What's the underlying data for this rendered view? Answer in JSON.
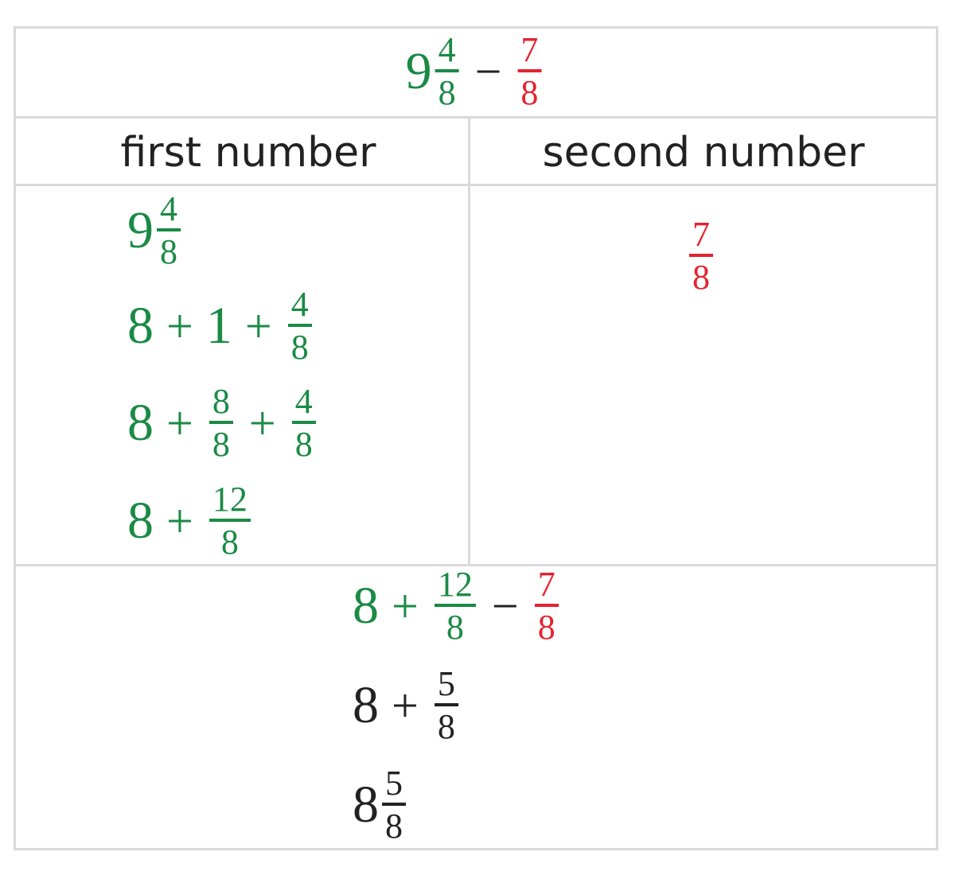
{
  "colors": {
    "green": "#1a8a45",
    "red": "#e52330",
    "black": "#222222",
    "border": "#d9d9d9"
  },
  "headers": {
    "first": "first number",
    "second": "second number"
  },
  "problem": [
    {
      "t": "num",
      "v": "9",
      "c": "green"
    },
    {
      "t": "frac",
      "n": "4",
      "d": "8",
      "c": "green"
    },
    {
      "t": "op",
      "v": "−",
      "c": "black"
    },
    {
      "t": "frac",
      "n": "7",
      "d": "8",
      "c": "red"
    }
  ],
  "first_steps": [
    [
      {
        "t": "num",
        "v": "9",
        "c": "green"
      },
      {
        "t": "frac",
        "n": "4",
        "d": "8",
        "c": "green"
      }
    ],
    [
      {
        "t": "num",
        "v": "8",
        "c": "green"
      },
      {
        "t": "op",
        "v": "+",
        "c": "green"
      },
      {
        "t": "num",
        "v": "1",
        "c": "green"
      },
      {
        "t": "op",
        "v": "+",
        "c": "green"
      },
      {
        "t": "frac",
        "n": "4",
        "d": "8",
        "c": "green"
      }
    ],
    [
      {
        "t": "num",
        "v": "8",
        "c": "green"
      },
      {
        "t": "op",
        "v": "+",
        "c": "green"
      },
      {
        "t": "frac",
        "n": "8",
        "d": "8",
        "c": "green"
      },
      {
        "t": "op",
        "v": "+",
        "c": "green"
      },
      {
        "t": "frac",
        "n": "4",
        "d": "8",
        "c": "green"
      }
    ],
    [
      {
        "t": "num",
        "v": "8",
        "c": "green"
      },
      {
        "t": "op",
        "v": "+",
        "c": "green"
      },
      {
        "t": "frac",
        "n": "12",
        "d": "8",
        "c": "green"
      }
    ]
  ],
  "second_steps": [
    [
      {
        "t": "frac",
        "n": "7",
        "d": "8",
        "c": "red"
      }
    ]
  ],
  "result_steps": [
    [
      {
        "t": "num",
        "v": "8",
        "c": "green"
      },
      {
        "t": "op",
        "v": "+",
        "c": "green"
      },
      {
        "t": "frac",
        "n": "12",
        "d": "8",
        "c": "green"
      },
      {
        "t": "op",
        "v": "−",
        "c": "black"
      },
      {
        "t": "frac",
        "n": "7",
        "d": "8",
        "c": "red"
      }
    ],
    [
      {
        "t": "num",
        "v": "8",
        "c": "black"
      },
      {
        "t": "op",
        "v": "+",
        "c": "black"
      },
      {
        "t": "frac",
        "n": "5",
        "d": "8",
        "c": "black"
      }
    ],
    [
      {
        "t": "num",
        "v": "8",
        "c": "black"
      },
      {
        "t": "frac",
        "n": "5",
        "d": "8",
        "c": "black"
      }
    ]
  ]
}
